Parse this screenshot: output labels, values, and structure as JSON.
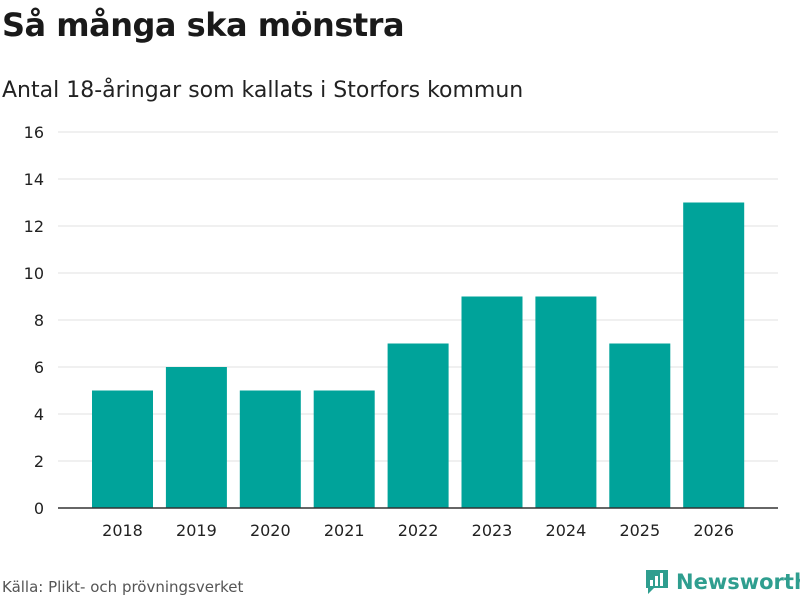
{
  "chart_data": {
    "type": "bar",
    "title": "Så många ska mönstra",
    "subtitle": "Antal 18-åringar som kallats i Storfors kommun",
    "categories": [
      "2018",
      "2019",
      "2020",
      "2021",
      "2022",
      "2023",
      "2024",
      "2025",
      "2026"
    ],
    "values": [
      5,
      6,
      5,
      5,
      7,
      9,
      9,
      7,
      13
    ],
    "ylim": [
      0,
      16
    ],
    "yticks": [
      0,
      2,
      4,
      6,
      8,
      10,
      12,
      14,
      16
    ],
    "xlabel": "",
    "ylabel": "",
    "bar_color": "#00a39a",
    "grid": true
  },
  "footer": {
    "source": "Källa: Plikt- och prövningsverket",
    "brand": "Newsworthy",
    "brand_color": "#2f9e8f"
  }
}
